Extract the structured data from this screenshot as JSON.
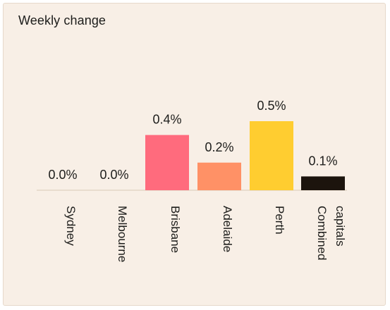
{
  "chart_data": {
    "type": "bar",
    "title": "Weekly change",
    "categories": [
      [
        "Sydney"
      ],
      [
        "Melbourne"
      ],
      [
        "Brisbane"
      ],
      [
        "Adelaide"
      ],
      [
        "Perth"
      ],
      [
        "Combined",
        "capitals"
      ]
    ],
    "values": [
      0.0,
      0.0,
      0.4,
      0.2,
      0.5,
      0.1
    ],
    "value_labels": [
      "0.0%",
      "0.0%",
      "0.4%",
      "0.2%",
      "0.5%",
      "0.1%"
    ],
    "colors": [
      "#f8efe6",
      "#f8efe6",
      "#ff6b7d",
      "#ff9166",
      "#ffcd30",
      "#1c140d"
    ],
    "ylim": [
      0,
      0.5
    ],
    "grid": false,
    "legend": "none"
  }
}
